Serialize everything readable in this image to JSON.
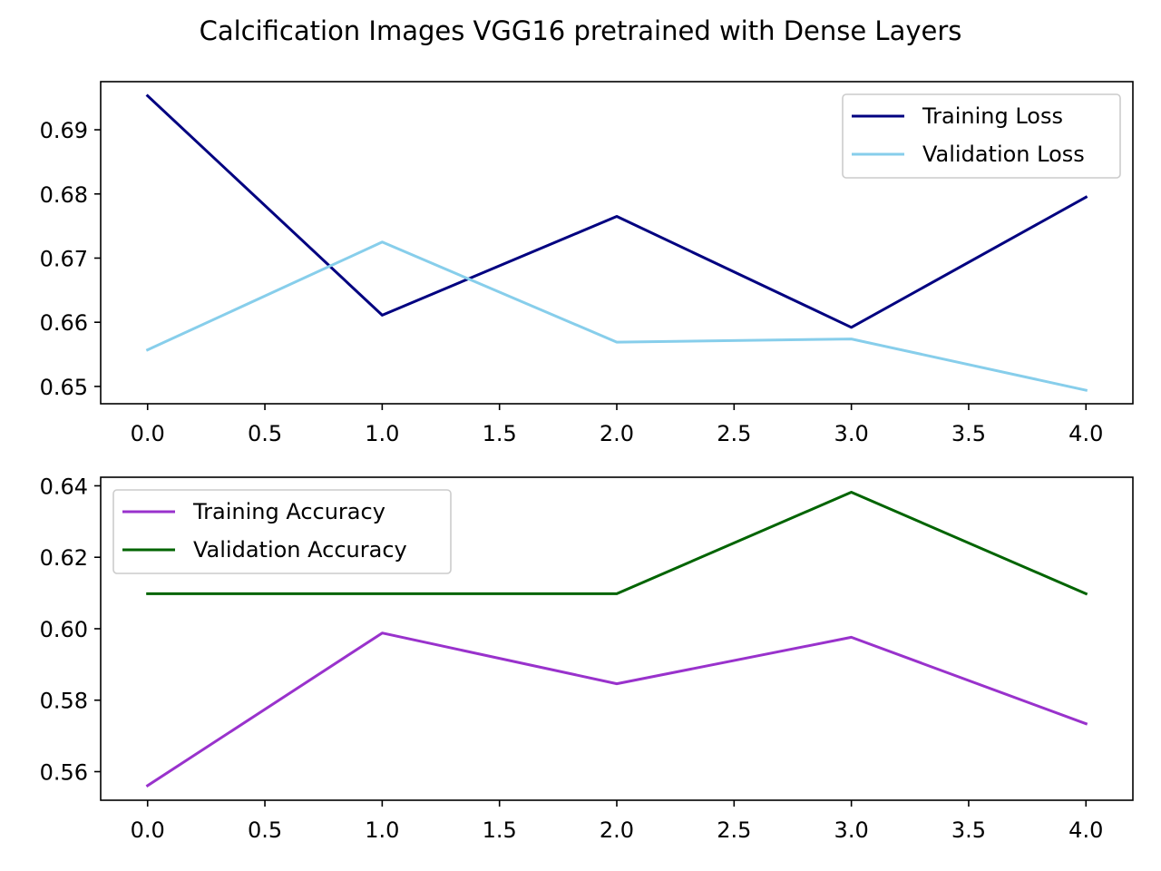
{
  "figure": {
    "title": "Calcification Images VGG16 pretrained with Dense Layers"
  },
  "chart_data": [
    {
      "type": "line",
      "title": "",
      "xlabel": "",
      "ylabel": "",
      "x": [
        0,
        1,
        2,
        3,
        4
      ],
      "xlim": [
        -0.2,
        4.2
      ],
      "ylim": [
        0.6473,
        0.6975
      ],
      "xticks": [
        0.0,
        0.5,
        1.0,
        1.5,
        2.0,
        2.5,
        3.0,
        3.5,
        4.0
      ],
      "xtick_labels": [
        "0.0",
        "0.5",
        "1.0",
        "1.5",
        "2.0",
        "2.5",
        "3.0",
        "3.5",
        "4.0"
      ],
      "yticks": [
        0.65,
        0.66,
        0.67,
        0.68,
        0.69
      ],
      "ytick_labels": [
        "0.65",
        "0.66",
        "0.67",
        "0.68",
        "0.69"
      ],
      "grid": false,
      "legend_position": "top-right",
      "series": [
        {
          "name": "Training Loss",
          "color": "#000080",
          "values": [
            0.6953,
            0.6611,
            0.6765,
            0.6592,
            0.6795
          ]
        },
        {
          "name": "Validation Loss",
          "color": "#87ceeb",
          "values": [
            0.6557,
            0.6725,
            0.6569,
            0.6574,
            0.6494
          ]
        }
      ]
    },
    {
      "type": "line",
      "title": "",
      "xlabel": "",
      "ylabel": "",
      "x": [
        0,
        1,
        2,
        3,
        4
      ],
      "xlim": [
        -0.2,
        4.2
      ],
      "ylim": [
        0.552,
        0.6424
      ],
      "xticks": [
        0.0,
        0.5,
        1.0,
        1.5,
        2.0,
        2.5,
        3.0,
        3.5,
        4.0
      ],
      "xtick_labels": [
        "0.0",
        "0.5",
        "1.0",
        "1.5",
        "2.0",
        "2.5",
        "3.0",
        "3.5",
        "4.0"
      ],
      "yticks": [
        0.56,
        0.58,
        0.6,
        0.62,
        0.64
      ],
      "ytick_labels": [
        "0.56",
        "0.58",
        "0.60",
        "0.62",
        "0.64"
      ],
      "grid": false,
      "legend_position": "top-left",
      "series": [
        {
          "name": "Training Accuracy",
          "color": "#9932cc",
          "values": [
            0.5561,
            0.5988,
            0.5846,
            0.5976,
            0.5734
          ]
        },
        {
          "name": "Validation Accuracy",
          "color": "#006400",
          "values": [
            0.6098,
            0.6098,
            0.6098,
            0.6382,
            0.6098
          ]
        }
      ]
    }
  ]
}
